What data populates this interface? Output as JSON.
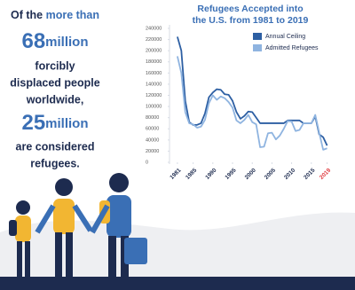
{
  "text": {
    "line1_a": "Of the",
    "line1_b": "more than",
    "num1": "68",
    "unit1": "million",
    "line3": "forcibly",
    "line4": "displaced people",
    "line5": "worldwide,",
    "num2": "25",
    "unit2": "million",
    "line7": "are considered",
    "line8": "refugees."
  },
  "chart_data": {
    "type": "line",
    "title": [
      "Refugees Accepted into",
      "the U.S. from 1981 to 2019"
    ],
    "x": [
      1981,
      1982,
      1983,
      1984,
      1985,
      1986,
      1987,
      1988,
      1989,
      1990,
      1991,
      1992,
      1993,
      1994,
      1995,
      1996,
      1997,
      1998,
      1999,
      2000,
      2001,
      2002,
      2003,
      2004,
      2005,
      2006,
      2007,
      2008,
      2009,
      2010,
      2011,
      2012,
      2013,
      2014,
      2015,
      2016,
      2017,
      2018,
      2019
    ],
    "series": [
      {
        "name": "Annual Ceiling",
        "color": "#2d5fa3",
        "values": [
          225000,
          200000,
          110000,
          72000,
          67000,
          67000,
          70000,
          87500,
          116500,
          125000,
          131000,
          130000,
          122000,
          121000,
          110000,
          90000,
          78000,
          83000,
          91000,
          90000,
          80000,
          70000,
          70000,
          70000,
          70000,
          70000,
          70000,
          70000,
          75000,
          75000,
          75000,
          75000,
          70000,
          70000,
          70000,
          82000,
          50000,
          45000,
          30000
        ]
      },
      {
        "name": "Admitted Refugees",
        "color": "#8fb4e0",
        "values": [
          190000,
          160000,
          90000,
          70000,
          68000,
          62000,
          64000,
          76000,
          106000,
          120000,
          112000,
          118000,
          115000,
          108000,
          98000,
          75000,
          70000,
          76000,
          85000,
          72000,
          68000,
          27000,
          28000,
          52000,
          53000,
          41000,
          48000,
          60000,
          74000,
          73000,
          56000,
          58000,
          70000,
          70000,
          70000,
          85000,
          53000,
          22500,
          25000
        ]
      }
    ],
    "xlim": [
      1979,
      2020
    ],
    "xticks": [
      1981,
      1985,
      1990,
      1995,
      2000,
      2005,
      2010,
      2015,
      2019
    ],
    "last_tick_color": "#e03a3e",
    "ylim": [
      0,
      240000
    ],
    "yticks": [
      0,
      20000,
      40000,
      60000,
      80000,
      100000,
      120000,
      140000,
      160000,
      180000,
      200000,
      220000,
      240000
    ],
    "legend": "upper-right",
    "grid": false
  }
}
